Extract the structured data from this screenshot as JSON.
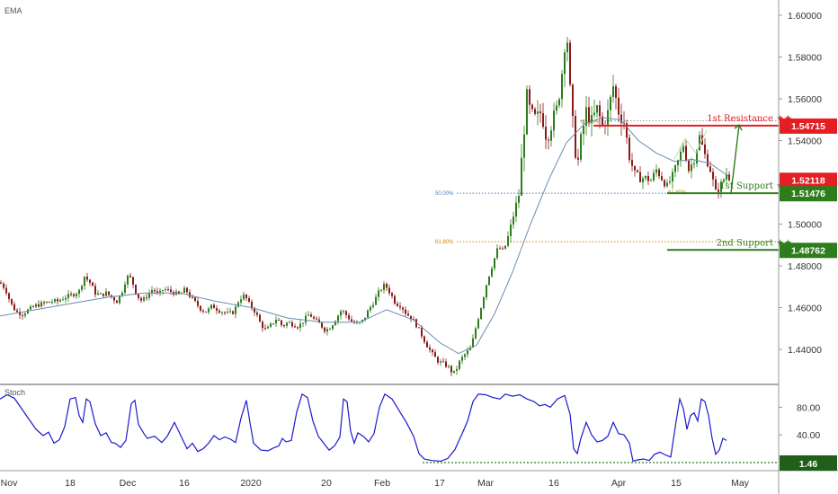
{
  "chart_data": {
    "type": "candlestick",
    "instrument_note": "",
    "main_indicator_label": "EMA",
    "sub_indicator_label": "Stoch",
    "x_ticks": [
      "Nov",
      "18",
      "Dec",
      "16",
      "2020",
      "20",
      "Feb",
      "17",
      "Mar",
      "16",
      "Apr",
      "15",
      "May"
    ],
    "y_ticks": [
      "1.60000",
      "1.58000",
      "1.56000",
      "1.54000",
      "1.50000",
      "1.48000",
      "1.46000",
      "1.44000"
    ],
    "ylim": [
      1.422,
      1.6035
    ],
    "stoch_ticks": [
      "80.00",
      "40.00"
    ],
    "stoch_ylim": [
      0,
      100
    ],
    "price_path": [
      [
        0,
        1.472
      ],
      [
        6,
        1.469
      ],
      [
        12,
        1.462
      ],
      [
        18,
        1.458
      ],
      [
        25,
        1.457
      ],
      [
        32,
        1.459
      ],
      [
        40,
        1.461
      ],
      [
        48,
        1.462
      ],
      [
        56,
        1.463
      ],
      [
        64,
        1.463
      ],
      [
        72,
        1.465
      ],
      [
        80,
        1.466
      ],
      [
        88,
        1.468
      ],
      [
        94,
        1.475
      ],
      [
        100,
        1.472
      ],
      [
        106,
        1.467
      ],
      [
        112,
        1.466
      ],
      [
        118,
        1.467
      ],
      [
        124,
        1.465
      ],
      [
        130,
        1.463
      ],
      [
        136,
        1.468
      ],
      [
        141,
        1.475
      ],
      [
        146,
        1.474
      ],
      [
        152,
        1.466
      ],
      [
        158,
        1.463
      ],
      [
        164,
        1.466
      ],
      [
        170,
        1.469
      ],
      [
        176,
        1.466
      ],
      [
        182,
        1.469
      ],
      [
        188,
        1.468
      ],
      [
        194,
        1.467
      ],
      [
        200,
        1.466
      ],
      [
        206,
        1.469
      ],
      [
        212,
        1.465
      ],
      [
        218,
        1.462
      ],
      [
        224,
        1.459
      ],
      [
        230,
        1.458
      ],
      [
        236,
        1.461
      ],
      [
        242,
        1.459
      ],
      [
        248,
        1.458
      ],
      [
        254,
        1.457
      ],
      [
        260,
        1.458
      ],
      [
        266,
        1.464
      ],
      [
        272,
        1.466
      ],
      [
        278,
        1.461
      ],
      [
        284,
        1.458
      ],
      [
        290,
        1.452
      ],
      [
        296,
        1.449
      ],
      [
        302,
        1.452
      ],
      [
        308,
        1.455
      ],
      [
        314,
        1.451
      ],
      [
        320,
        1.453
      ],
      [
        326,
        1.452
      ],
      [
        332,
        1.451
      ],
      [
        338,
        1.454
      ],
      [
        344,
        1.457
      ],
      [
        350,
        1.454
      ],
      [
        356,
        1.452
      ],
      [
        362,
        1.449
      ],
      [
        368,
        1.451
      ],
      [
        374,
        1.455
      ],
      [
        380,
        1.459
      ],
      [
        386,
        1.456
      ],
      [
        392,
        1.453
      ],
      [
        398,
        1.452
      ],
      [
        404,
        1.454
      ],
      [
        410,
        1.459
      ],
      [
        416,
        1.463
      ],
      [
        422,
        1.468
      ],
      [
        428,
        1.471
      ],
      [
        434,
        1.467
      ],
      [
        440,
        1.462
      ],
      [
        446,
        1.461
      ],
      [
        452,
        1.457
      ],
      [
        458,
        1.455
      ],
      [
        464,
        1.451
      ],
      [
        470,
        1.446
      ],
      [
        476,
        1.441
      ],
      [
        482,
        1.437
      ],
      [
        488,
        1.434
      ],
      [
        494,
        1.433
      ],
      [
        500,
        1.431
      ],
      [
        504,
        1.428
      ],
      [
        508,
        1.431
      ],
      [
        512,
        1.435
      ],
      [
        518,
        1.438
      ],
      [
        524,
        1.441
      ],
      [
        530,
        1.452
      ],
      [
        536,
        1.462
      ],
      [
        542,
        1.473
      ],
      [
        548,
        1.481
      ],
      [
        554,
        1.489
      ],
      [
        560,
        1.487
      ],
      [
        566,
        1.495
      ],
      [
        572,
        1.506
      ],
      [
        577,
        1.514
      ],
      [
        582,
        1.541
      ],
      [
        586,
        1.561
      ],
      [
        590,
        1.553
      ],
      [
        596,
        1.55
      ],
      [
        602,
        1.554
      ],
      [
        608,
        1.541
      ],
      [
        614,
        1.549
      ],
      [
        620,
        1.556
      ],
      [
        626,
        1.576
      ],
      [
        630,
        1.596
      ],
      [
        634,
        1.564
      ],
      [
        638,
        1.543
      ],
      [
        642,
        1.527
      ],
      [
        646,
        1.54
      ],
      [
        652,
        1.554
      ],
      [
        658,
        1.549
      ],
      [
        664,
        1.555
      ],
      [
        670,
        1.547
      ],
      [
        676,
        1.553
      ],
      [
        682,
        1.566
      ],
      [
        688,
        1.554
      ],
      [
        694,
        1.549
      ],
      [
        700,
        1.532
      ],
      [
        706,
        1.524
      ],
      [
        712,
        1.522
      ],
      [
        718,
        1.522
      ],
      [
        724,
        1.521
      ],
      [
        730,
        1.526
      ],
      [
        736,
        1.522
      ],
      [
        742,
        1.518
      ],
      [
        748,
        1.523
      ],
      [
        754,
        1.53
      ],
      [
        760,
        1.538
      ],
      [
        766,
        1.526
      ],
      [
        772,
        1.531
      ],
      [
        778,
        1.542
      ],
      [
        784,
        1.533
      ],
      [
        790,
        1.526
      ],
      [
        796,
        1.515
      ],
      [
        802,
        1.519
      ],
      [
        808,
        1.524
      ],
      [
        812,
        1.521
      ]
    ],
    "ema_path": [
      [
        0,
        1.456
      ],
      [
        40,
        1.459
      ],
      [
        80,
        1.462
      ],
      [
        120,
        1.465
      ],
      [
        160,
        1.467
      ],
      [
        200,
        1.467
      ],
      [
        240,
        1.463
      ],
      [
        280,
        1.46
      ],
      [
        320,
        1.455
      ],
      [
        360,
        1.453
      ],
      [
        400,
        1.453
      ],
      [
        430,
        1.459
      ],
      [
        460,
        1.454
      ],
      [
        490,
        1.443
      ],
      [
        510,
        1.438
      ],
      [
        530,
        1.442
      ],
      [
        550,
        1.457
      ],
      [
        570,
        1.477
      ],
      [
        590,
        1.5
      ],
      [
        610,
        1.521
      ],
      [
        630,
        1.539
      ],
      [
        650,
        1.548
      ],
      [
        670,
        1.551
      ],
      [
        690,
        1.55
      ],
      [
        710,
        1.54
      ],
      [
        730,
        1.534
      ],
      [
        750,
        1.53
      ],
      [
        770,
        1.531
      ],
      [
        790,
        1.529
      ],
      [
        810,
        1.523
      ]
    ],
    "stoch_path": [
      [
        0,
        92
      ],
      [
        8,
        98
      ],
      [
        16,
        93
      ],
      [
        24,
        78
      ],
      [
        32,
        63
      ],
      [
        40,
        48
      ],
      [
        48,
        39
      ],
      [
        54,
        44
      ],
      [
        60,
        28
      ],
      [
        66,
        33
      ],
      [
        72,
        52
      ],
      [
        78,
        92
      ],
      [
        84,
        94
      ],
      [
        88,
        68
      ],
      [
        92,
        58
      ],
      [
        96,
        92
      ],
      [
        100,
        88
      ],
      [
        106,
        56
      ],
      [
        112,
        39
      ],
      [
        118,
        43
      ],
      [
        124,
        29
      ],
      [
        128,
        28
      ],
      [
        134,
        22
      ],
      [
        140,
        32
      ],
      [
        146,
        85
      ],
      [
        150,
        90
      ],
      [
        154,
        55
      ],
      [
        160,
        42
      ],
      [
        164,
        35
      ],
      [
        172,
        38
      ],
      [
        180,
        29
      ],
      [
        186,
        38
      ],
      [
        194,
        58
      ],
      [
        200,
        42
      ],
      [
        208,
        20
      ],
      [
        214,
        28
      ],
      [
        220,
        16
      ],
      [
        226,
        20
      ],
      [
        232,
        28
      ],
      [
        238,
        39
      ],
      [
        244,
        33
      ],
      [
        250,
        37
      ],
      [
        256,
        34
      ],
      [
        262,
        29
      ],
      [
        268,
        64
      ],
      [
        274,
        90
      ],
      [
        278,
        58
      ],
      [
        282,
        28
      ],
      [
        290,
        18
      ],
      [
        298,
        17
      ],
      [
        304,
        21
      ],
      [
        310,
        24
      ],
      [
        314,
        35
      ],
      [
        318,
        30
      ],
      [
        324,
        32
      ],
      [
        330,
        73
      ],
      [
        336,
        99
      ],
      [
        342,
        94
      ],
      [
        348,
        60
      ],
      [
        354,
        38
      ],
      [
        360,
        28
      ],
      [
        366,
        18
      ],
      [
        372,
        24
      ],
      [
        378,
        37
      ],
      [
        382,
        92
      ],
      [
        386,
        88
      ],
      [
        390,
        45
      ],
      [
        394,
        28
      ],
      [
        398,
        43
      ],
      [
        404,
        38
      ],
      [
        410,
        30
      ],
      [
        416,
        42
      ],
      [
        422,
        80
      ],
      [
        428,
        99
      ],
      [
        436,
        92
      ],
      [
        444,
        75
      ],
      [
        452,
        58
      ],
      [
        460,
        38
      ],
      [
        466,
        13
      ],
      [
        472,
        5
      ],
      [
        480,
        3
      ],
      [
        490,
        2
      ],
      [
        498,
        6
      ],
      [
        506,
        19
      ],
      [
        514,
        42
      ],
      [
        520,
        60
      ],
      [
        526,
        88
      ],
      [
        532,
        99
      ],
      [
        540,
        98
      ],
      [
        548,
        94
      ],
      [
        556,
        92
      ],
      [
        562,
        99
      ],
      [
        570,
        96
      ],
      [
        578,
        98
      ],
      [
        586,
        92
      ],
      [
        594,
        88
      ],
      [
        600,
        82
      ],
      [
        606,
        84
      ],
      [
        612,
        80
      ],
      [
        620,
        92
      ],
      [
        628,
        97
      ],
      [
        634,
        70
      ],
      [
        638,
        20
      ],
      [
        642,
        13
      ],
      [
        646,
        35
      ],
      [
        652,
        58
      ],
      [
        658,
        40
      ],
      [
        664,
        30
      ],
      [
        670,
        32
      ],
      [
        676,
        38
      ],
      [
        682,
        58
      ],
      [
        688,
        42
      ],
      [
        694,
        40
      ],
      [
        700,
        28
      ],
      [
        704,
        2
      ],
      [
        710,
        4
      ],
      [
        716,
        5
      ],
      [
        722,
        3
      ],
      [
        728,
        12
      ],
      [
        734,
        15
      ],
      [
        740,
        11
      ],
      [
        746,
        8
      ],
      [
        752,
        60
      ],
      [
        756,
        92
      ],
      [
        760,
        78
      ],
      [
        764,
        48
      ],
      [
        768,
        68
      ],
      [
        772,
        72
      ],
      [
        776,
        60
      ],
      [
        780,
        92
      ],
      [
        784,
        88
      ],
      [
        788,
        68
      ],
      [
        792,
        35
      ],
      [
        796,
        12
      ],
      [
        800,
        18
      ],
      [
        804,
        35
      ],
      [
        808,
        32
      ]
    ],
    "levels": [
      {
        "name": "1st Resistance ★★",
        "price": 1.54715,
        "tag": "1.54715",
        "color": "#e31e24"
      },
      {
        "name": "1st Support ★★",
        "price": 1.51476,
        "tag": "1.51476",
        "color": "#2e7d1c"
      },
      {
        "name": "2nd Support ★★",
        "price": 1.48762,
        "tag": "1.48762",
        "color": "#2e7d1c"
      }
    ],
    "current_price_tag": "1.52118",
    "current_price": 1.52118,
    "fib_labels": [
      {
        "text": "50.00%",
        "price": 1.51476
      },
      {
        "text": "61.80%",
        "price": 1.49155
      },
      {
        "text": "61.80%",
        "price": 1.549
      },
      {
        "text": "61.80%",
        "price": 1.5153
      }
    ],
    "stoch_level_tag": "1.46",
    "colors": {
      "up": "#2e7d1c",
      "down": "#8b1a1a",
      "ema": "#6a8caf",
      "stoch": "#1a1acc",
      "resistance": "#e31e24",
      "support": "#2e7d1c"
    }
  }
}
